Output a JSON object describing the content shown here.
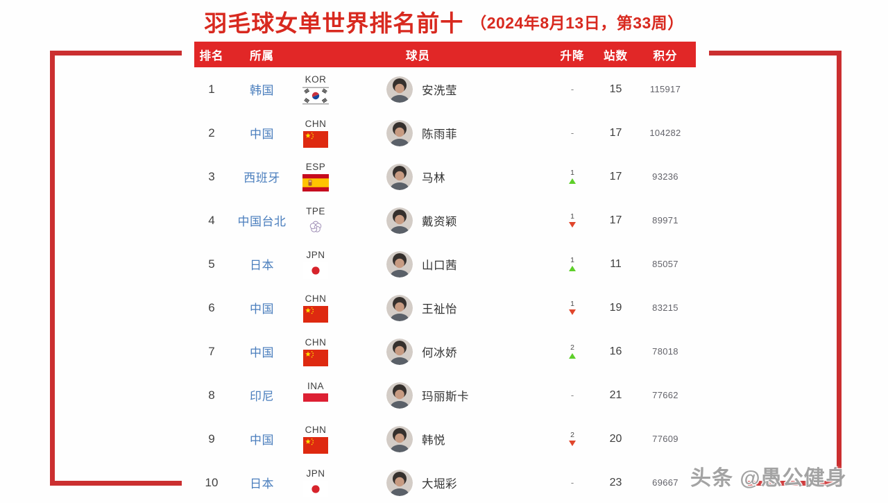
{
  "chart_data": {
    "type": "table",
    "title": "羽毛球女单世界排名前十",
    "subtitle": "（2024年8月13日，第33周）",
    "columns": [
      "排名",
      "所属",
      "球员",
      "升降",
      "站数",
      "积分"
    ],
    "rows": [
      {
        "rank": "1",
        "country": "韩国",
        "code": "KOR",
        "player": "安洗莹",
        "change": "-",
        "direction": "none",
        "stations": "15",
        "points": "115917"
      },
      {
        "rank": "2",
        "country": "中国",
        "code": "CHN",
        "player": "陈雨菲",
        "change": "-",
        "direction": "none",
        "stations": "17",
        "points": "104282"
      },
      {
        "rank": "3",
        "country": "西班牙",
        "code": "ESP",
        "player": "马林",
        "change": "1",
        "direction": "up",
        "stations": "17",
        "points": "93236"
      },
      {
        "rank": "4",
        "country": "中国台北",
        "code": "TPE",
        "player": "戴资颖",
        "change": "1",
        "direction": "down",
        "stations": "17",
        "points": "89971"
      },
      {
        "rank": "5",
        "country": "日本",
        "code": "JPN",
        "player": "山口茜",
        "change": "1",
        "direction": "up",
        "stations": "11",
        "points": "85057"
      },
      {
        "rank": "6",
        "country": "中国",
        "code": "CHN",
        "player": "王祉怡",
        "change": "1",
        "direction": "down",
        "stations": "19",
        "points": "83215"
      },
      {
        "rank": "7",
        "country": "中国",
        "code": "CHN",
        "player": "何冰娇",
        "change": "2",
        "direction": "up",
        "stations": "16",
        "points": "78018"
      },
      {
        "rank": "8",
        "country": "印尼",
        "code": "INA",
        "player": "玛丽斯卡",
        "change": "-",
        "direction": "none",
        "stations": "21",
        "points": "77662"
      },
      {
        "rank": "9",
        "country": "中国",
        "code": "CHN",
        "player": "韩悦",
        "change": "2",
        "direction": "down",
        "stations": "20",
        "points": "77609"
      },
      {
        "rank": "10",
        "country": "日本",
        "code": "JPN",
        "player": "大堀彩",
        "change": "-",
        "direction": "none",
        "stations": "23",
        "points": "69667"
      }
    ]
  },
  "watermark": "头条 @愚公健身",
  "colors": {
    "accent_red": "#d8291f",
    "header_bg": "#e12727",
    "frame_red": "#cb2f30",
    "country_blue": "#4a7ebd",
    "up_green": "#5ecf2a",
    "down_red": "#e0462c"
  }
}
